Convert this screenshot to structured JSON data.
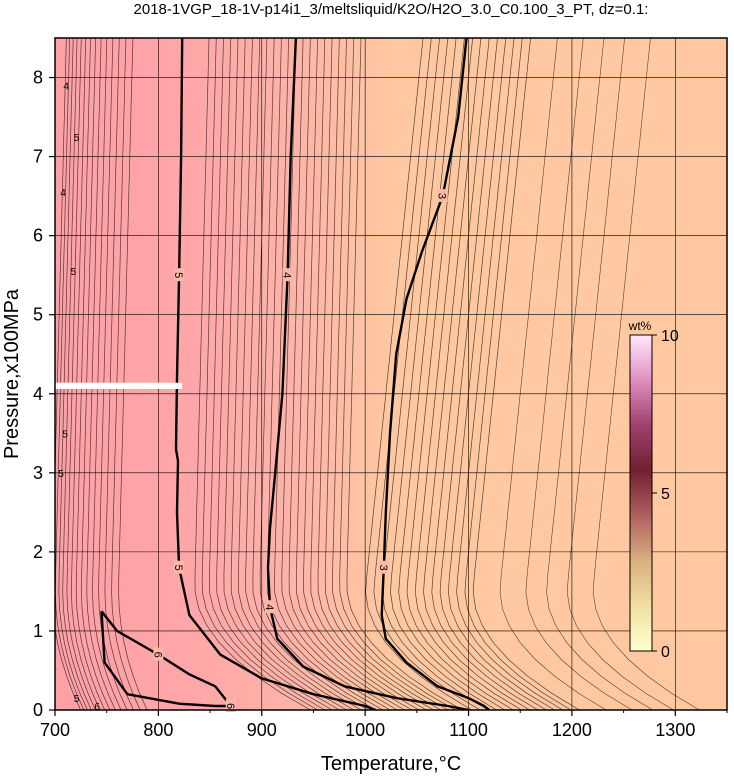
{
  "chart_data": {
    "type": "contour",
    "title": "2018-1VGP_18-1V-p14i1_3/meltsliquid/K2O/H2O_3.0_C0.100_3_PT, dz=0.1:",
    "xlabel": "Temperature,°C",
    "ylabel": "Pressure,x100MPa",
    "xlim": [
      700,
      1350
    ],
    "ylim": [
      0,
      8.5
    ],
    "x_ticks": [
      700,
      800,
      900,
      1000,
      1100,
      1200,
      1300
    ],
    "y_ticks": [
      0,
      1,
      2,
      3,
      4,
      5,
      6,
      7,
      8
    ],
    "grid": true,
    "contour_interval": 0.1,
    "background_colors": {
      "low_T_region": "#ffa6a8",
      "high_T_region": "#ffc8a0"
    },
    "colorbar": {
      "title": "wt%",
      "min": 0,
      "max": 10,
      "ticks": [
        0,
        5,
        10
      ],
      "placement": "right-inside",
      "colors": [
        "#ffffd0",
        "#f0e0a0",
        "#d8b080",
        "#b06060",
        "#702030",
        "#a04070",
        "#e090c0",
        "#ffe8ff"
      ]
    },
    "labeled_contours": [
      {
        "level": 6,
        "label": "6",
        "points": [
          [
            745,
            1.25
          ],
          [
            760,
            1.0
          ],
          [
            800,
            0.7
          ],
          [
            830,
            0.45
          ],
          [
            855,
            0.3
          ],
          [
            870,
            0.05
          ],
          [
            855,
            0.05
          ],
          [
            820,
            0.08
          ],
          [
            770,
            0.2
          ],
          [
            748,
            0.6
          ],
          [
            745,
            1.25
          ]
        ]
      },
      {
        "level": 5,
        "label": "5",
        "points": [
          [
            823,
            8.5
          ],
          [
            822,
            7.0
          ],
          [
            820,
            5.5
          ],
          [
            818,
            4.2
          ],
          [
            817,
            3.3
          ],
          [
            819,
            3.15
          ],
          [
            818,
            2.5
          ],
          [
            820,
            1.8
          ],
          [
            830,
            1.2
          ],
          [
            860,
            0.7
          ],
          [
            900,
            0.4
          ],
          [
            950,
            0.2
          ],
          [
            1000,
            0.05
          ],
          [
            1010,
            0
          ]
        ]
      },
      {
        "level": 4,
        "label": "4",
        "points": [
          [
            933,
            8.5
          ],
          [
            928,
            7.0
          ],
          [
            925,
            5.5
          ],
          [
            920,
            4.0
          ],
          [
            913,
            3.0
          ],
          [
            908,
            2.3
          ],
          [
            906,
            1.8
          ],
          [
            908,
            1.3
          ],
          [
            915,
            0.9
          ],
          [
            940,
            0.55
          ],
          [
            980,
            0.3
          ],
          [
            1030,
            0.15
          ],
          [
            1080,
            0.05
          ],
          [
            1100,
            0
          ]
        ]
      },
      {
        "level": 3,
        "label": "3",
        "points": [
          [
            1098,
            8.5
          ],
          [
            1090,
            7.5
          ],
          [
            1075,
            6.5
          ],
          [
            1055,
            5.8
          ],
          [
            1040,
            5.2
          ],
          [
            1030,
            4.5
          ],
          [
            1024,
            3.5
          ],
          [
            1020,
            2.5
          ],
          [
            1018,
            1.8
          ],
          [
            1016,
            1.2
          ],
          [
            1020,
            0.9
          ],
          [
            1040,
            0.6
          ],
          [
            1070,
            0.3
          ],
          [
            1100,
            0.15
          ],
          [
            1115,
            0.05
          ],
          [
            1120,
            0
          ]
        ]
      }
    ],
    "left_edge_labels": [
      {
        "label": "4",
        "x": 705,
        "y": 7.9
      },
      {
        "label": "5",
        "x": 715,
        "y": 7.25
      },
      {
        "label": "4",
        "x": 702,
        "y": 6.55
      },
      {
        "label": "5",
        "x": 712,
        "y": 5.55
      },
      {
        "label": "5",
        "x": 704,
        "y": 3.5
      },
      {
        "label": "5",
        "x": 700,
        "y": 3.0
      },
      {
        "label": "5",
        "x": 715,
        "y": 0.15
      },
      {
        "label": "6",
        "x": 735,
        "y": 0.05
      }
    ],
    "masked_band": {
      "x": [
        700,
        823
      ],
      "y": [
        4.06,
        4.14
      ],
      "color": "#ffffff"
    }
  }
}
